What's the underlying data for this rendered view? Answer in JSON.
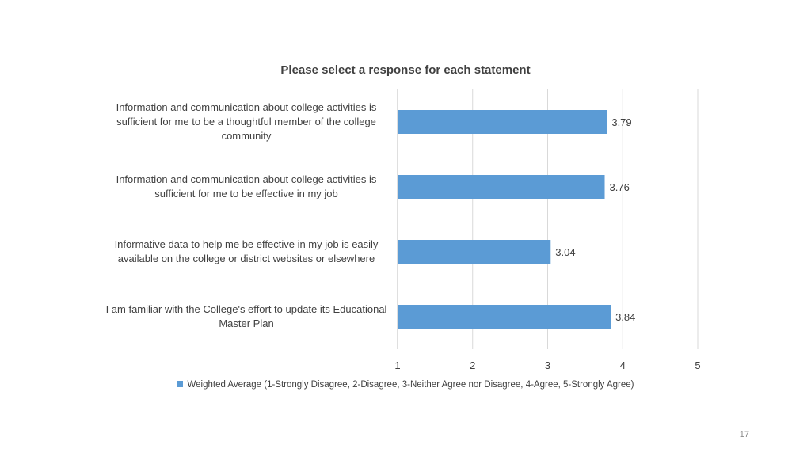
{
  "chart_data": {
    "type": "bar",
    "orientation": "horizontal",
    "title": "Please select a response for each statement",
    "categories": [
      "Information and communication about college activities is sufficient for me to be a thoughtful member of the college community",
      "Information and communication about college activities is sufficient for me to be effective in my job",
      "Informative data to help me be effective in my job is easily available on the college or district websites or elsewhere",
      "I am familiar with the College's effort to update its Educational Master Plan"
    ],
    "series": [
      {
        "name": "Weighted Average (1-Strongly Disagree, 2-Disagree, 3-Neither Agree nor Disagree, 4-Agree, 5-Strongly Agree)",
        "values": [
          3.79,
          3.76,
          3.04,
          3.84
        ],
        "data_labels": [
          "3.79",
          "3.76",
          "3.04",
          "3.84"
        ],
        "color": "#5b9bd5"
      }
    ],
    "xlim": [
      1,
      5
    ],
    "xticks": [
      "1",
      "2",
      "3",
      "4",
      "5"
    ],
    "grid": true,
    "legend": "bottom"
  },
  "page_number": "17"
}
